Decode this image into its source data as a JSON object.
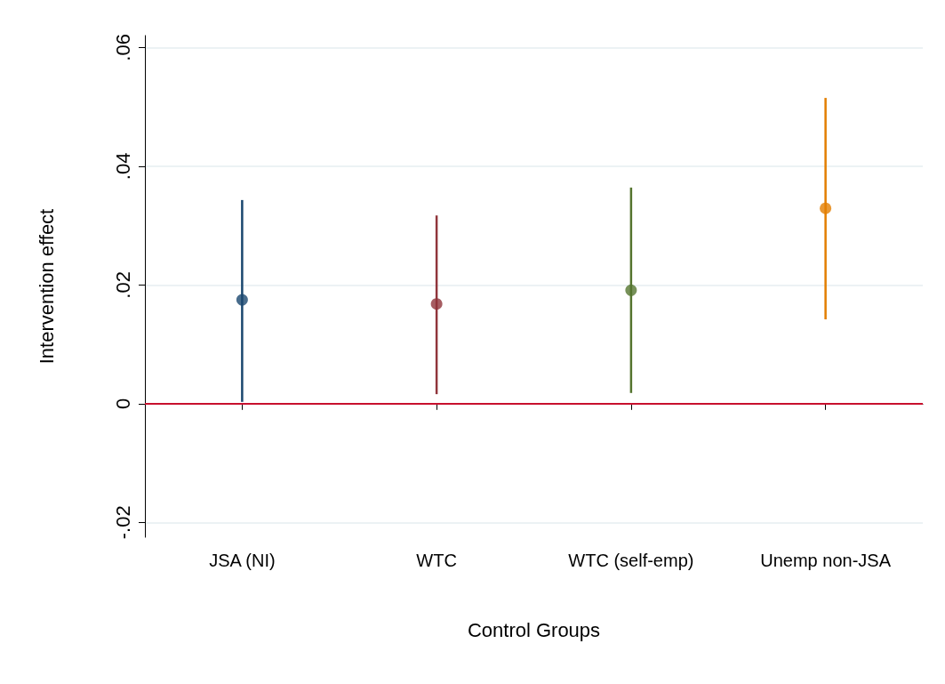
{
  "chart_data": {
    "type": "scatter",
    "xlabel": "Control Groups",
    "ylabel": "Intervention effect",
    "categories": [
      "JSA (NI)",
      "WTC",
      "WTC (self-emp)",
      "Unemp non-JSA"
    ],
    "values": [
      0.0175,
      0.0168,
      0.0191,
      0.0329
    ],
    "errors": [
      [
        0.0003,
        0.0343
      ],
      [
        0.0016,
        0.0317
      ],
      [
        0.0018,
        0.0364
      ],
      [
        0.0142,
        0.0515
      ]
    ],
    "colors": [
      "#1a476f",
      "#90353b",
      "#55752f",
      "#e37e00"
    ],
    "marker": "circle",
    "ylim": [
      -0.0225,
      0.062
    ],
    "yticks": [
      {
        "value": -0.02,
        "label": "-.02"
      },
      {
        "value": 0,
        "label": "0"
      },
      {
        "value": 0.02,
        "label": ".02"
      },
      {
        "value": 0.04,
        "label": ".04"
      },
      {
        "value": 0.06,
        "label": ".06"
      }
    ],
    "grid": "y",
    "ref_lines": [
      {
        "axis": "y",
        "value": 0,
        "color": "#c8102e"
      }
    ]
  }
}
